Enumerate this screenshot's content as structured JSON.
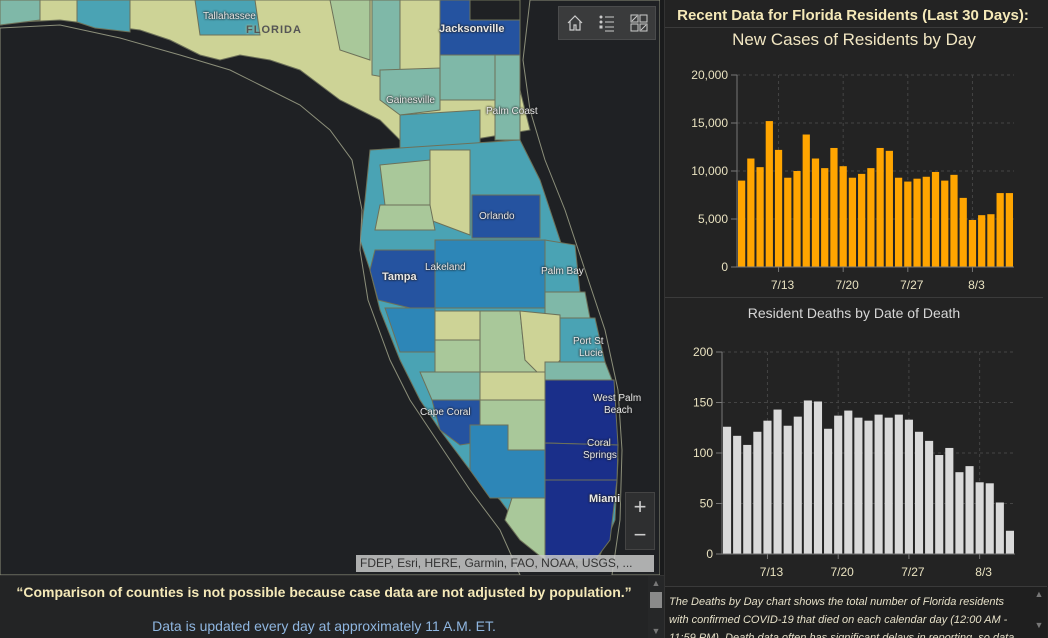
{
  "map": {
    "labels": {
      "tallahassee": "Tallahassee",
      "florida": "FLORIDA",
      "jacksonville": "Jacksonville",
      "gainesville": "Gainesville",
      "palm_coast": "Palm Coast",
      "orlando": "Orlando",
      "tampa": "Tampa",
      "lakeland": "Lakeland",
      "palm_bay": "Palm Bay",
      "port_st_lucie_1": "Port St",
      "port_st_lucie_2": "Lucie",
      "cape_coral": "Cape Coral",
      "west_palm_1": "West Palm",
      "west_palm_2": "Beach",
      "coral_springs_1": "Coral",
      "coral_springs_2": "Springs",
      "miami": "Miami"
    },
    "toolbar": {
      "home_icon": "home-icon",
      "legend_icon": "legend-list-icon",
      "basemap_icon": "basemap-gallery-icon"
    },
    "zoom": {
      "in": "+",
      "out": "−"
    },
    "attribution": "FDEP, Esri, HERE, Garmin, FAO, NOAA, USGS, ...",
    "colors": {
      "water": "#1f2124",
      "lightest": "#cdd396",
      "light": "#a9c89a",
      "mid_light": "#7fb8a8",
      "mid": "#4aa3b4",
      "mid_dark": "#2d86b7",
      "dark": "#2553a0",
      "darkest": "#1a2f8a"
    }
  },
  "bottom": {
    "quote": "“Comparison of counties is not possible because case data are not adjusted by population.”",
    "updated": "Data is updated every day at approximately 11 A.M. ET."
  },
  "right_panel": {
    "title": "Recent Data for Florida Residents (Last 30 Days):",
    "note": "The Deaths by Day chart shows the total number of Florida residents with confirmed COVID-19 that died on each calendar day (12:00 AM - 11:59 PM). Death data often has significant delays in reporting, so data"
  },
  "chart_data": [
    {
      "type": "bar",
      "title": "New Cases of Residents by Day",
      "xlabel": "",
      "ylabel": "",
      "ylim": [
        0,
        20000
      ],
      "yticks": [
        0,
        5000,
        10000,
        15000,
        20000
      ],
      "ytick_labels": [
        "0",
        "5,000",
        "10,000",
        "15,000",
        "20,000"
      ],
      "xtick_labels": [
        {
          "label": "7/13",
          "index": 4.5
        },
        {
          "label": "7/20",
          "index": 11.5
        },
        {
          "label": "7/27",
          "index": 18.5
        },
        {
          "label": "8/3",
          "index": 25.5
        }
      ],
      "grid": true,
      "color": "#ffa500",
      "values": [
        9000,
        11300,
        10400,
        15200,
        12200,
        9300,
        10000,
        13800,
        11300,
        10300,
        12400,
        10500,
        9300,
        9700,
        10300,
        12400,
        12100,
        9300,
        8900,
        9200,
        9400,
        9900,
        9000,
        9600,
        7200,
        4900,
        5400,
        5500,
        7700,
        7700
      ]
    },
    {
      "type": "bar",
      "title": "Resident Deaths by Date of Death",
      "xlabel": "",
      "ylabel": "",
      "ylim": [
        0,
        200
      ],
      "yticks": [
        0,
        50,
        100,
        150,
        200
      ],
      "ytick_labels": [
        "0",
        "50",
        "100",
        "150",
        "200"
      ],
      "xtick_labels": [
        {
          "label": "7/13",
          "index": 4.5
        },
        {
          "label": "7/20",
          "index": 11.5
        },
        {
          "label": "7/27",
          "index": 18.5
        },
        {
          "label": "8/3",
          "index": 25.5
        }
      ],
      "grid": true,
      "color": "#dadada",
      "values": [
        126,
        117,
        108,
        121,
        132,
        143,
        127,
        136,
        152,
        151,
        124,
        137,
        142,
        135,
        132,
        138,
        135,
        138,
        133,
        121,
        112,
        98,
        105,
        81,
        87,
        71,
        70,
        51,
        23
      ]
    }
  ]
}
